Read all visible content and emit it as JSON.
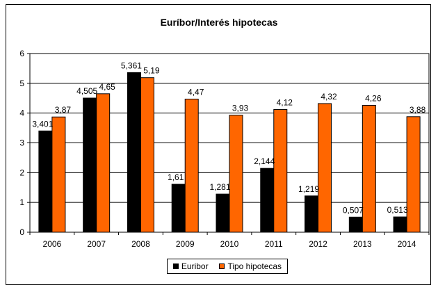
{
  "chart_data": {
    "type": "bar",
    "title": "Euríbor/Interés hipotecas",
    "xlabel": "",
    "ylabel": "",
    "categories": [
      "2006",
      "2007",
      "2008",
      "2009",
      "2010",
      "2011",
      "2012",
      "2013",
      "2014"
    ],
    "series": [
      {
        "name": "Euribor",
        "color": "#000000",
        "values": [
          3.401,
          4.505,
          5.361,
          1.61,
          1.281,
          2.144,
          1.219,
          0.507,
          0.513
        ],
        "labels": [
          "3,401",
          "4,505",
          "5,361",
          "1,61",
          "1,281",
          "2,144",
          "1,219",
          "0,507",
          "0,513"
        ]
      },
      {
        "name": "Tipo hipotecas",
        "color": "#FF6600",
        "values": [
          3.87,
          4.65,
          5.19,
          4.47,
          3.93,
          4.12,
          4.32,
          4.26,
          3.88
        ],
        "labels": [
          "3,87",
          "4,65",
          "5,19",
          "4,47",
          "3,93",
          "4,12",
          "4,32",
          "4,26",
          "3,88"
        ]
      }
    ],
    "ylim": [
      0,
      6
    ],
    "yticks": [
      "0",
      "1",
      "2",
      "3",
      "4",
      "5",
      "6"
    ],
    "grid": true,
    "legend_position": "bottom"
  }
}
